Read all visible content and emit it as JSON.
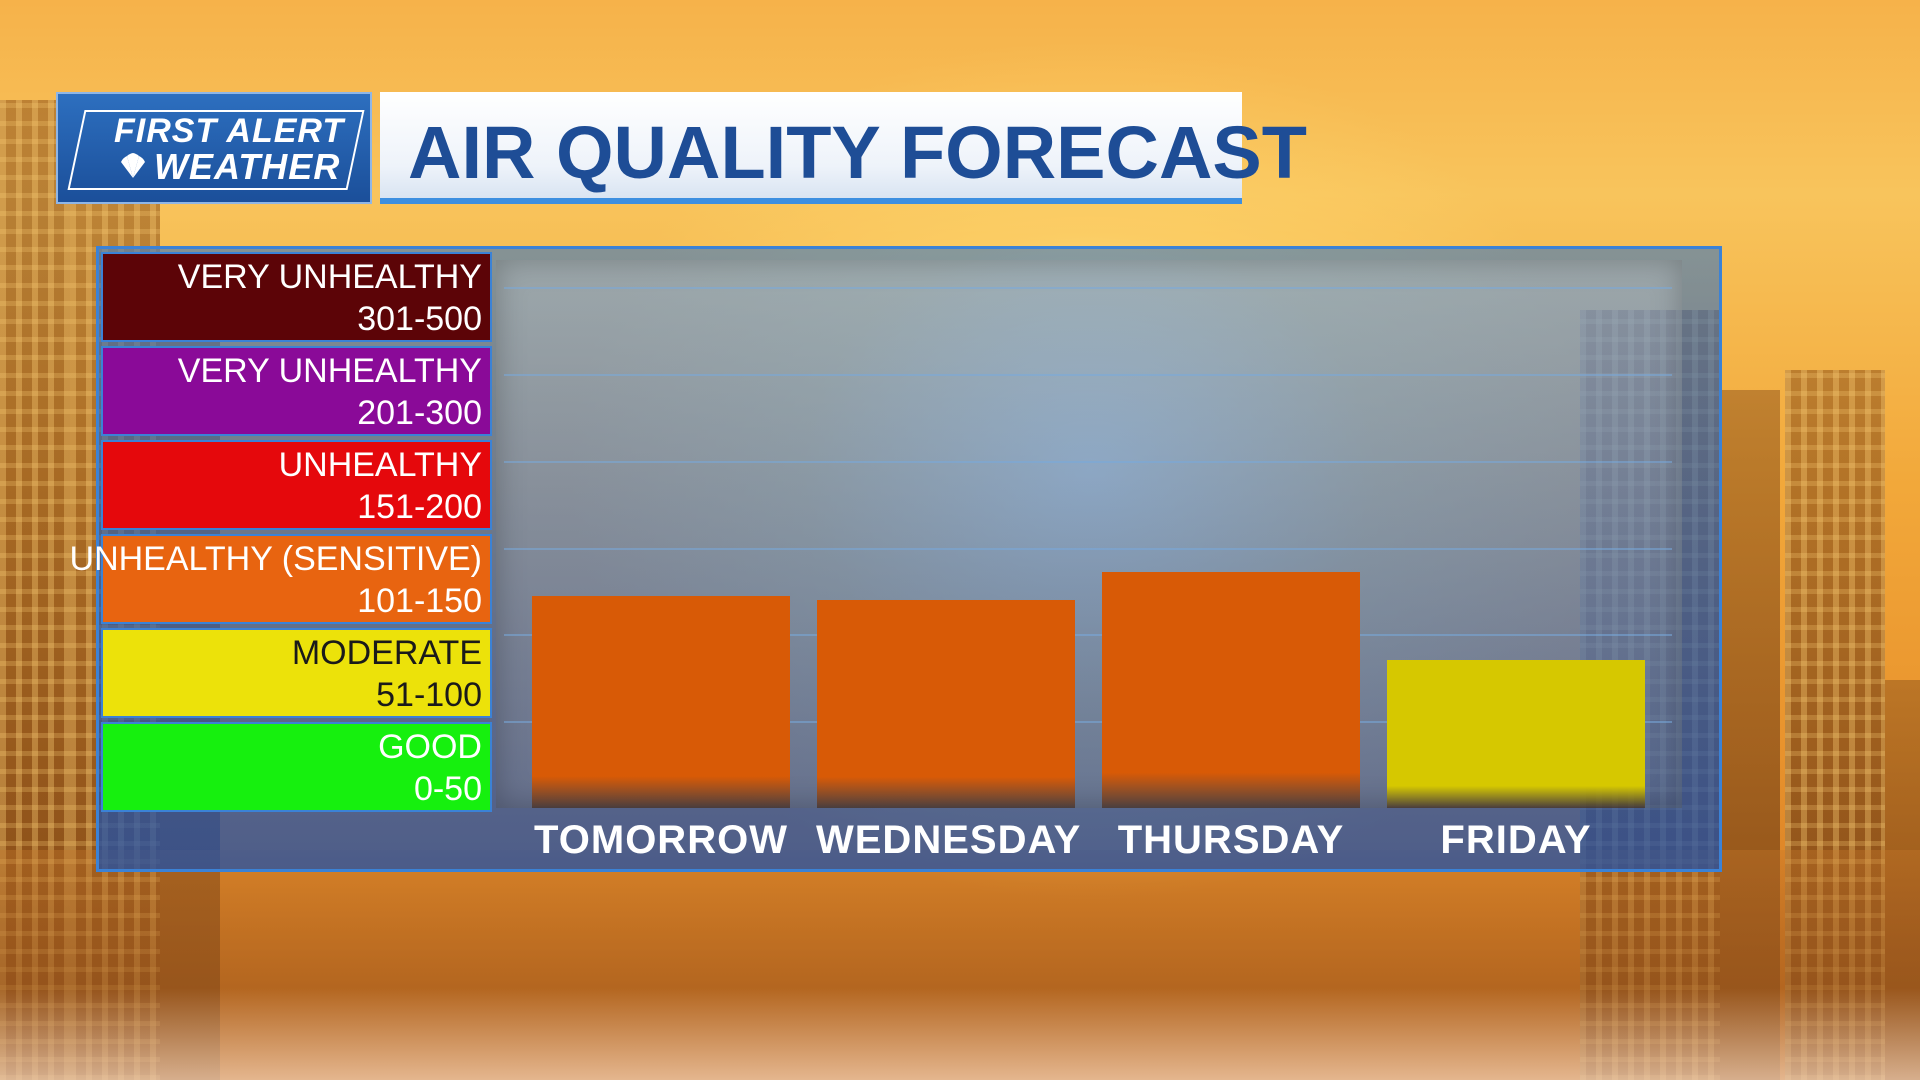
{
  "header": {
    "logo_line1": "FIRST ALERT",
    "logo_line2": "WEATHER",
    "title": "AIR QUALITY FORECAST"
  },
  "legend": [
    {
      "name": "VERY UNHEALTHY",
      "range": "301-500",
      "color": "#5c0407",
      "text_color": "#ffffff"
    },
    {
      "name": "VERY UNHEALTHY",
      "range": "201-300",
      "color": "#8a0a98",
      "text_color": "#ffffff"
    },
    {
      "name": "UNHEALTHY",
      "range": "151-200",
      "color": "#e5080c",
      "text_color": "#ffffff"
    },
    {
      "name": "UNHEALTHY (SENSITIVE)",
      "range": "101-150",
      "color": "#e86410",
      "text_color": "#ffffff"
    },
    {
      "name": "MODERATE",
      "range": "51-100",
      "color": "#ece20a",
      "text_color": "#1a1a1a"
    },
    {
      "name": "GOOD",
      "range": "0-50",
      "color": "#16f00e",
      "text_color": "#ffffff"
    }
  ],
  "chart_data": {
    "type": "bar",
    "categories": [
      "TOMORROW",
      "WEDNESDAY",
      "THURSDAY",
      "FRIDAY"
    ],
    "values": [
      122,
      120,
      136,
      85
    ],
    "colors": [
      "#d85a06",
      "#d85a06",
      "#d85a06",
      "#d6c800"
    ],
    "ylim": [
      0,
      300
    ],
    "grid": true
  }
}
